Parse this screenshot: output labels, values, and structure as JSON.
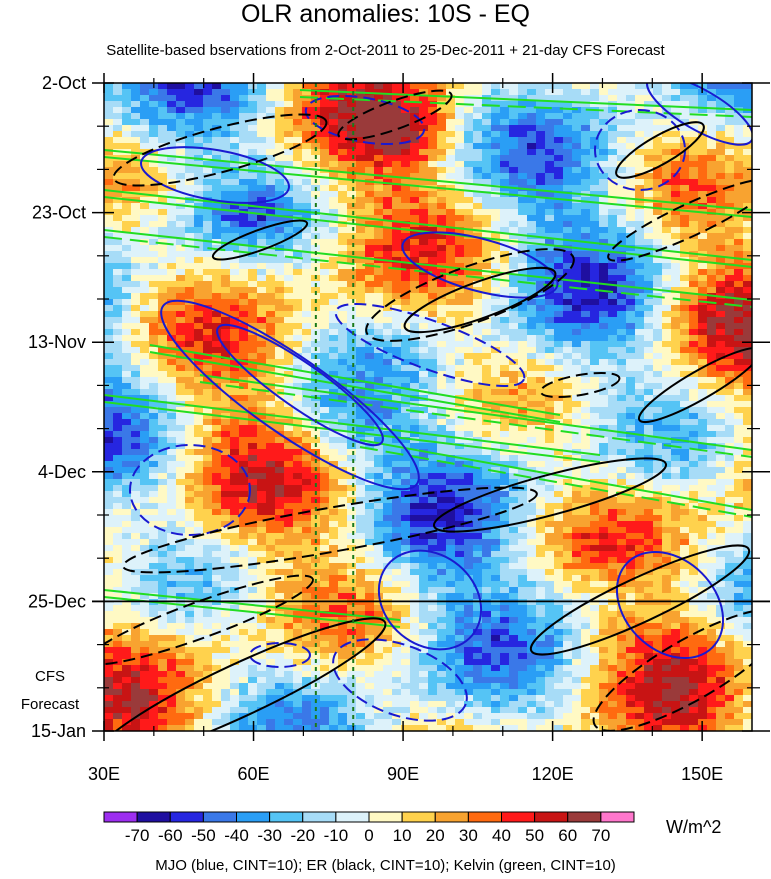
{
  "chart_data": {
    "type": "heatmap",
    "title": "OLR anomalies: 10S - EQ",
    "subtitle": "Satellite-based bservations from 2-Oct-2011 to 25-Dec-2011 + 21-day CFS Forecast",
    "x_axis": {
      "tick_values": [
        30,
        60,
        90,
        120,
        150
      ],
      "tick_labels": [
        "30E",
        "60E",
        "90E",
        "120E",
        "150E"
      ],
      "range": [
        30,
        160
      ]
    },
    "y_axis": {
      "tick_labels": [
        "2-Oct",
        "23-Oct",
        "13-Nov",
        "4-Dec",
        "25-Dec",
        "15-Jan"
      ],
      "tick_days": [
        0,
        21,
        42,
        63,
        84,
        105
      ],
      "range_days": [
        0,
        105
      ],
      "inverted": true
    },
    "observation_end_label": "25-Dec",
    "forecast_label_lines": [
      "CFS",
      "Forecast"
    ],
    "reference_longitudes": [
      72.5,
      80
    ],
    "colorbar": {
      "levels": [
        -70,
        -60,
        -50,
        -40,
        -30,
        -20,
        -10,
        0,
        10,
        20,
        30,
        40,
        50,
        60,
        70
      ],
      "labels": [
        "-70",
        "-60",
        "-50",
        "-40",
        "-30",
        "-20",
        "-10",
        "0",
        "10",
        "20",
        "30",
        "40",
        "50",
        "60",
        "70"
      ],
      "colors": [
        "#9d2ef0",
        "#1f0fa0",
        "#2626e0",
        "#3a78e8",
        "#2a9ef5",
        "#55c4f5",
        "#a7dcf7",
        "#ddf2fa",
        "#fff9c4",
        "#ffd24d",
        "#f8a330",
        "#ff6a10",
        "#ff1a1a",
        "#c81414",
        "#9a3a3a",
        "#ff77cc"
      ],
      "units": "W/m^2"
    },
    "contour_legend": "MJO (blue, CINT=10); ER (black, CINT=10); Kelvin (green, CINT=10)",
    "line_colors": {
      "mjo": "#1a1ad0",
      "er": "#000000",
      "kelvin": "#22dd22",
      "reference": "#1a7a1a"
    }
  }
}
